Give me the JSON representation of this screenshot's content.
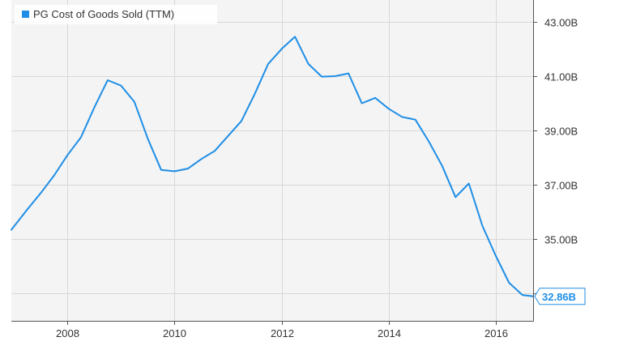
{
  "chart_data": {
    "type": "line",
    "legend": {
      "label": "PG Cost of Goods Sold (TTM)",
      "placement": "top-left",
      "color": "#1e8ee6"
    },
    "line_color": "#1e8ee6",
    "plot_background": "#f4f4f4",
    "grid": true,
    "x_axis": {
      "type": "time",
      "range": [
        2006.95,
        2016.7
      ],
      "ticks": [
        2008,
        2010,
        2012,
        2014,
        2016
      ],
      "tick_labels": [
        "2008",
        "2010",
        "2012",
        "2014",
        "2016"
      ]
    },
    "y_axis": {
      "position": "right",
      "range": [
        32.0,
        43.8
      ],
      "ticks": [
        33,
        35,
        37,
        39,
        41,
        43
      ],
      "tick_labels": [
        "",
        "35.00B",
        "37.00B",
        "39.00B",
        "41.00B",
        "43.00B"
      ]
    },
    "last_value_label": "32.86B",
    "series": [
      {
        "x": [
          2006.95,
          2007.25,
          2007.5,
          2007.75,
          2008.0,
          2008.25,
          2008.5,
          2008.75,
          2009.0,
          2009.25,
          2009.5,
          2009.75,
          2010.0,
          2010.25,
          2010.5,
          2010.75,
          2011.0,
          2011.25,
          2011.5,
          2011.75,
          2012.0,
          2012.25,
          2012.5,
          2012.75,
          2013.0,
          2013.25,
          2013.5,
          2013.75,
          2014.0,
          2014.25,
          2014.5,
          2014.75,
          2015.0,
          2015.25,
          2015.5,
          2015.75,
          2016.0,
          2016.25,
          2016.5,
          2016.7
        ],
        "y": [
          35.35,
          36.1,
          36.7,
          37.35,
          38.1,
          38.75,
          39.85,
          40.85,
          40.65,
          40.05,
          38.7,
          37.55,
          37.5,
          37.6,
          37.95,
          38.25,
          38.8,
          39.35,
          40.35,
          41.45,
          42.0,
          42.45,
          41.45,
          40.98,
          41.0,
          41.1,
          40.0,
          40.2,
          39.8,
          39.5,
          39.4,
          38.6,
          37.7,
          36.55,
          37.05,
          35.5,
          34.4,
          33.4,
          32.95,
          32.9
        ]
      }
    ]
  }
}
